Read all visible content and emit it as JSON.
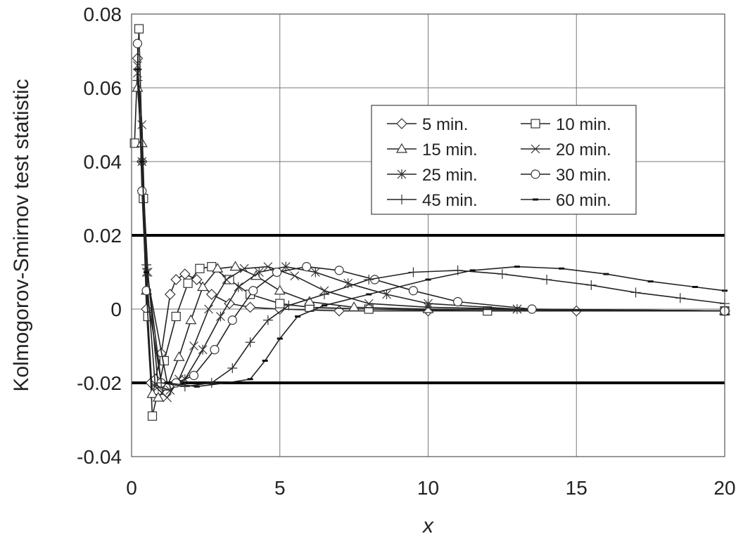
{
  "chart_data": {
    "type": "line",
    "xlabel": "x",
    "ylabel": "Kolmogorov-Smirnov test statistic",
    "xlim": [
      0,
      20
    ],
    "ylim": [
      -0.04,
      0.08
    ],
    "xticks": [
      0,
      5,
      10,
      15,
      20
    ],
    "yticks": [
      -0.04,
      -0.02,
      0,
      0.02,
      0.04,
      0.06,
      0.08
    ],
    "xtick_labels": [
      "0",
      "5",
      "10",
      "15",
      "20"
    ],
    "ytick_labels": [
      "-0.04",
      "-0.02",
      "0",
      "0.02",
      "0.04",
      "0.06",
      "0.08"
    ],
    "grid": true,
    "legend_position": "upper-right",
    "reference_lines": [
      0.02,
      -0.02
    ],
    "series": [
      {
        "name": "5 min.",
        "marker": "diamond",
        "points": [
          [
            0.2,
            0.068
          ],
          [
            0.35,
            0.04
          ],
          [
            0.5,
            0.0
          ],
          [
            0.65,
            -0.02
          ],
          [
            0.8,
            -0.019
          ],
          [
            1.0,
            -0.012
          ],
          [
            1.3,
            0.004
          ],
          [
            1.5,
            0.008
          ],
          [
            1.8,
            0.0095
          ],
          [
            2.2,
            0.008
          ],
          [
            2.7,
            0.004
          ],
          [
            3.3,
            0.0015
          ],
          [
            4,
            0.0005
          ],
          [
            5,
            0.0
          ],
          [
            7,
            -0.0005
          ],
          [
            10,
            -0.0005
          ],
          [
            15,
            -0.0005
          ],
          [
            20,
            -0.0005
          ]
        ]
      },
      {
        "name": "10 min.",
        "marker": "square",
        "points": [
          [
            0.1,
            0.045
          ],
          [
            0.25,
            0.076
          ],
          [
            0.4,
            0.03
          ],
          [
            0.55,
            -0.002
          ],
          [
            0.7,
            -0.029
          ],
          [
            0.9,
            -0.022
          ],
          [
            1.1,
            -0.014
          ],
          [
            1.5,
            -0.002
          ],
          [
            1.9,
            0.007
          ],
          [
            2.3,
            0.011
          ],
          [
            2.7,
            0.0115
          ],
          [
            3.3,
            0.008
          ],
          [
            4,
            0.004
          ],
          [
            5,
            0.0015
          ],
          [
            6,
            0.0005
          ],
          [
            8,
            0.0
          ],
          [
            12,
            -0.0005
          ],
          [
            20,
            -0.0005
          ]
        ]
      },
      {
        "name": "15 min.",
        "marker": "triangle",
        "points": [
          [
            0.2,
            0.06
          ],
          [
            0.35,
            0.045
          ],
          [
            0.5,
            0.005
          ],
          [
            0.7,
            -0.023
          ],
          [
            0.9,
            -0.024
          ],
          [
            1.2,
            -0.021
          ],
          [
            1.6,
            -0.013
          ],
          [
            2.0,
            -0.003
          ],
          [
            2.4,
            0.006
          ],
          [
            2.9,
            0.011
          ],
          [
            3.5,
            0.0115
          ],
          [
            4.2,
            0.009
          ],
          [
            5.0,
            0.005
          ],
          [
            6,
            0.002
          ],
          [
            7.5,
            0.0005
          ],
          [
            10,
            0.0
          ],
          [
            20,
            -0.0005
          ]
        ]
      },
      {
        "name": "20 min.",
        "marker": "x",
        "points": [
          [
            0.2,
            0.066
          ],
          [
            0.35,
            0.05
          ],
          [
            0.5,
            0.01
          ],
          [
            0.8,
            -0.021
          ],
          [
            1.2,
            -0.024
          ],
          [
            1.6,
            -0.019
          ],
          [
            2.1,
            -0.01
          ],
          [
            2.6,
            0.0
          ],
          [
            3.2,
            0.008
          ],
          [
            3.8,
            0.011
          ],
          [
            4.6,
            0.0115
          ],
          [
            5.5,
            0.009
          ],
          [
            6.5,
            0.005
          ],
          [
            8,
            0.0015
          ],
          [
            10,
            0.0005
          ],
          [
            13,
            0.0
          ],
          [
            20,
            -0.0005
          ]
        ]
      },
      {
        "name": "25 min.",
        "marker": "asterisk",
        "points": [
          [
            0.2,
            0.064
          ],
          [
            0.35,
            0.04
          ],
          [
            0.55,
            0.01
          ],
          [
            0.9,
            -0.021
          ],
          [
            1.3,
            -0.022
          ],
          [
            1.8,
            -0.019
          ],
          [
            2.4,
            -0.011
          ],
          [
            3.0,
            -0.002
          ],
          [
            3.6,
            0.006
          ],
          [
            4.3,
            0.01
          ],
          [
            5.2,
            0.0115
          ],
          [
            6.2,
            0.01
          ],
          [
            7.3,
            0.007
          ],
          [
            8.6,
            0.004
          ],
          [
            10,
            0.0015
          ],
          [
            13,
            0.0
          ],
          [
            20,
            -0.0005
          ]
        ]
      },
      {
        "name": "30 min.",
        "marker": "circle",
        "points": [
          [
            0.2,
            0.072
          ],
          [
            0.35,
            0.032
          ],
          [
            0.5,
            0.005
          ],
          [
            1.0,
            -0.02
          ],
          [
            1.5,
            -0.02
          ],
          [
            2.1,
            -0.018
          ],
          [
            2.8,
            -0.011
          ],
          [
            3.4,
            -0.003
          ],
          [
            4.1,
            0.005
          ],
          [
            4.9,
            0.01
          ],
          [
            5.9,
            0.0115
          ],
          [
            7.0,
            0.0105
          ],
          [
            8.2,
            0.008
          ],
          [
            9.5,
            0.005
          ],
          [
            11,
            0.002
          ],
          [
            13.5,
            0.0
          ],
          [
            20,
            -0.0005
          ]
        ]
      },
      {
        "name": "45 min.",
        "marker": "plus",
        "points": [
          [
            0.2,
            0.062
          ],
          [
            0.35,
            0.04
          ],
          [
            0.5,
            0.012
          ],
          [
            1.0,
            -0.02
          ],
          [
            1.8,
            -0.021
          ],
          [
            2.7,
            -0.02
          ],
          [
            3.4,
            -0.016
          ],
          [
            4.0,
            -0.009
          ],
          [
            4.6,
            -0.003
          ],
          [
            5.3,
            0.001
          ],
          [
            6.5,
            0.004
          ],
          [
            8,
            0.008
          ],
          [
            9.5,
            0.01
          ],
          [
            11,
            0.0105
          ],
          [
            12.5,
            0.0095
          ],
          [
            14,
            0.008
          ],
          [
            15.5,
            0.0065
          ],
          [
            17,
            0.0045
          ],
          [
            18.5,
            0.003
          ],
          [
            20,
            0.0015
          ]
        ]
      },
      {
        "name": "60 min.",
        "marker": "dash",
        "points": [
          [
            0.2,
            0.065
          ],
          [
            0.35,
            0.04
          ],
          [
            0.5,
            0.01
          ],
          [
            1.2,
            -0.02
          ],
          [
            2.2,
            -0.021
          ],
          [
            3.2,
            -0.02
          ],
          [
            4.0,
            -0.019
          ],
          [
            4.5,
            -0.014
          ],
          [
            5.0,
            -0.008
          ],
          [
            5.6,
            -0.002
          ],
          [
            6.5,
            0.001
          ],
          [
            8,
            0.004
          ],
          [
            10,
            0.008
          ],
          [
            11.5,
            0.0105
          ],
          [
            13,
            0.0115
          ],
          [
            14.5,
            0.011
          ],
          [
            16,
            0.0095
          ],
          [
            17.5,
            0.0075
          ],
          [
            19,
            0.006
          ],
          [
            20,
            0.005
          ]
        ]
      }
    ]
  }
}
